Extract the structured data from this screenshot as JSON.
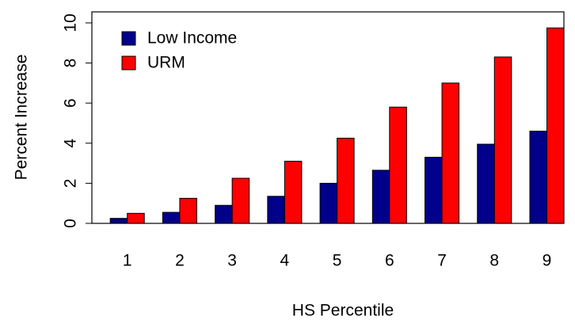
{
  "chart_data": {
    "type": "bar",
    "x_label": "HS Percentile",
    "y_label": "Percent Increase",
    "categories": [
      "1",
      "2",
      "3",
      "4",
      "5",
      "6",
      "7",
      "8",
      "9"
    ],
    "series": [
      {
        "name": "Low Income",
        "color": "#00008b",
        "values": [
          0.25,
          0.55,
          0.9,
          1.35,
          2.0,
          2.65,
          3.3,
          3.95,
          4.6
        ]
      },
      {
        "name": "URM",
        "color": "#ff0000",
        "values": [
          0.5,
          1.25,
          2.25,
          3.1,
          4.25,
          5.8,
          7.0,
          8.3,
          9.75
        ]
      }
    ],
    "ylim": [
      0,
      10.55
    ],
    "yticks": [
      0,
      2,
      4,
      6,
      8,
      10
    ],
    "legend": "topleft"
  }
}
